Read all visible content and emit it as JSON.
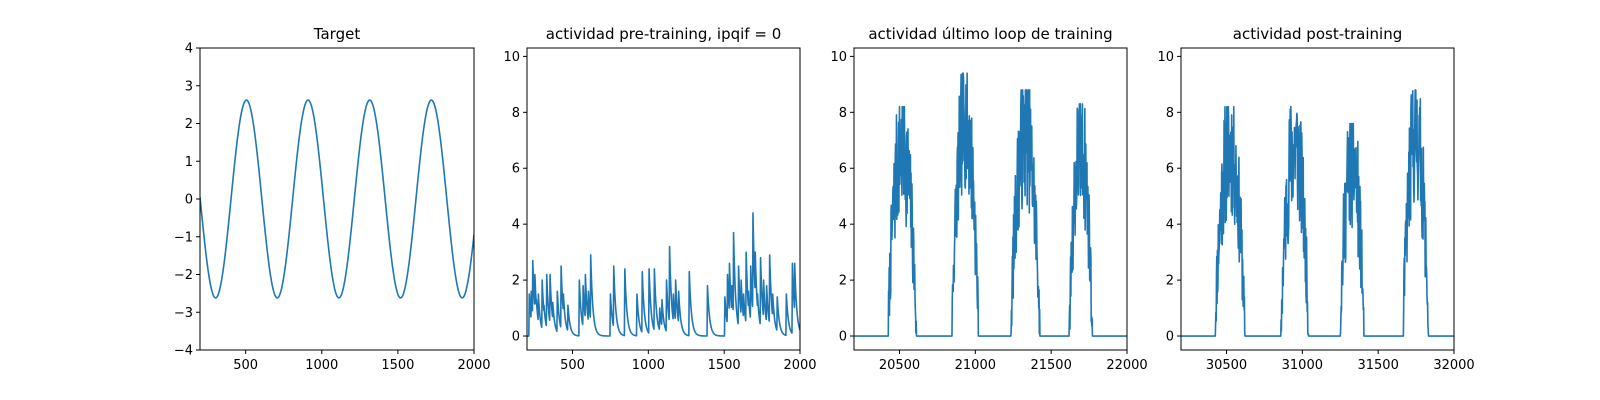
{
  "colors": {
    "line": "#1f77b4",
    "axes": "#000000",
    "background": "#ffffff"
  },
  "chart_data": [
    {
      "type": "line",
      "title": "Target",
      "xlim": [
        200,
        2000
      ],
      "ylim": [
        -4,
        4
      ],
      "xticks": [
        500,
        1000,
        1500,
        2000
      ],
      "yticks": [
        -4,
        -3,
        -2,
        -1,
        0,
        1,
        2,
        3,
        4
      ],
      "xtick_labels": [
        "500",
        "1000",
        "1500",
        "2000"
      ],
      "ytick_labels": [
        "−4",
        "−3",
        "−2",
        "−1",
        "0",
        "1",
        "2",
        "3",
        "4"
      ],
      "grid": false,
      "series": [
        {
          "kind": "sine",
          "amplitude": 2.62,
          "period": 405,
          "peak_x": 505,
          "x_start": 200,
          "x_end": 2000
        }
      ]
    },
    {
      "type": "line",
      "title": "actividad pre-training, ipqif = 0",
      "xlim": [
        200,
        2000
      ],
      "ylim": [
        -0.5,
        10.3
      ],
      "xticks": [
        500,
        1000,
        1500,
        2000
      ],
      "yticks": [
        0,
        2,
        4,
        6,
        8,
        10
      ],
      "xtick_labels": [
        "500",
        "1000",
        "1500",
        "2000"
      ],
      "ytick_labels": [
        "0",
        "2",
        "4",
        "6",
        "8",
        "10"
      ],
      "grid": false,
      "series": [
        {
          "kind": "spikes",
          "x_start": 200,
          "x_end": 2000,
          "baseline": 0,
          "decay": 14,
          "spikes": [
            [
              215,
              1.5
            ],
            [
              228,
              1.6
            ],
            [
              238,
              2.7
            ],
            [
              252,
              2.2
            ],
            [
              262,
              1.3
            ],
            [
              275,
              1.5
            ],
            [
              300,
              2.0
            ],
            [
              312,
              1.1
            ],
            [
              330,
              2.2
            ],
            [
              352,
              2.2
            ],
            [
              370,
              1.2
            ],
            [
              400,
              1.6
            ],
            [
              425,
              2.5
            ],
            [
              440,
              1.5
            ],
            [
              470,
              1.1
            ],
            [
              545,
              2.0
            ],
            [
              570,
              1.8
            ],
            [
              585,
              2.2
            ],
            [
              605,
              1.6
            ],
            [
              620,
              2.9
            ],
            [
              750,
              1.5
            ],
            [
              772,
              2.5
            ],
            [
              845,
              2.4
            ],
            [
              925,
              1.5
            ],
            [
              960,
              2.3
            ],
            [
              1005,
              2.4
            ],
            [
              1040,
              2.4
            ],
            [
              1075,
              1.0
            ],
            [
              1090,
              1.3
            ],
            [
              1120,
              2.0
            ],
            [
              1140,
              3.2
            ],
            [
              1165,
              1.5
            ],
            [
              1180,
              2.0
            ],
            [
              1200,
              1.6
            ],
            [
              1270,
              2.3
            ],
            [
              1390,
              1.8
            ],
            [
              1505,
              1.4
            ],
            [
              1522,
              2.2
            ],
            [
              1535,
              2.6
            ],
            [
              1550,
              1.8
            ],
            [
              1562,
              3.7
            ],
            [
              1578,
              1.2
            ],
            [
              1595,
              2.5
            ],
            [
              1612,
              2.0
            ],
            [
              1628,
              1.5
            ],
            [
              1645,
              3.0
            ],
            [
              1660,
              1.6
            ],
            [
              1675,
              2.5
            ],
            [
              1690,
              4.4
            ],
            [
              1705,
              3.0
            ],
            [
              1720,
              1.5
            ],
            [
              1740,
              2.8
            ],
            [
              1760,
              2.0
            ],
            [
              1780,
              1.8
            ],
            [
              1800,
              2.9
            ],
            [
              1820,
              1.5
            ],
            [
              1850,
              1.4
            ],
            [
              1910,
              1.5
            ],
            [
              1950,
              2.6
            ],
            [
              1965,
              2.6
            ]
          ]
        }
      ]
    },
    {
      "type": "line",
      "title": "actividad último loop de training",
      "xlim": [
        20200,
        22000
      ],
      "ylim": [
        -0.5,
        10.3
      ],
      "xticks": [
        20500,
        21000,
        21500,
        22000
      ],
      "yticks": [
        0,
        2,
        4,
        6,
        8,
        10
      ],
      "xtick_labels": [
        "20500",
        "21000",
        "21500",
        "22000"
      ],
      "ytick_labels": [
        "0",
        "2",
        "4",
        "6",
        "8",
        "10"
      ],
      "grid": false,
      "series": [
        {
          "kind": "bursts",
          "x_start": 20200,
          "x_end": 22000,
          "baseline": 0,
          "noise": 1.1,
          "seed": 7,
          "bursts": [
            {
              "start": 20425,
              "end": 20610,
              "peak": 8.2
            },
            {
              "start": 20845,
              "end": 21020,
              "peak": 9.4
            },
            {
              "start": 21235,
              "end": 21425,
              "peak": 8.8
            },
            {
              "start": 21620,
              "end": 21770,
              "peak": 8.3
            }
          ]
        }
      ]
    },
    {
      "type": "line",
      "title": "actividad post-training",
      "xlim": [
        30200,
        32000
      ],
      "ylim": [
        -0.5,
        10.3
      ],
      "xticks": [
        30500,
        31000,
        31500,
        32000
      ],
      "yticks": [
        0,
        2,
        4,
        6,
        8,
        10
      ],
      "xtick_labels": [
        "30500",
        "31000",
        "31500",
        "32000"
      ],
      "ytick_labels": [
        "0",
        "2",
        "4",
        "6",
        "8",
        "10"
      ],
      "grid": false,
      "series": [
        {
          "kind": "bursts",
          "x_start": 30200,
          "x_end": 32000,
          "baseline": 0,
          "noise": 1.1,
          "seed": 11,
          "bursts": [
            {
              "start": 30425,
              "end": 30620,
              "peak": 8.2
            },
            {
              "start": 30860,
              "end": 31040,
              "peak": 8.3
            },
            {
              "start": 31250,
              "end": 31405,
              "peak": 7.6
            },
            {
              "start": 31665,
              "end": 31830,
              "peak": 8.8
            }
          ]
        }
      ]
    }
  ]
}
